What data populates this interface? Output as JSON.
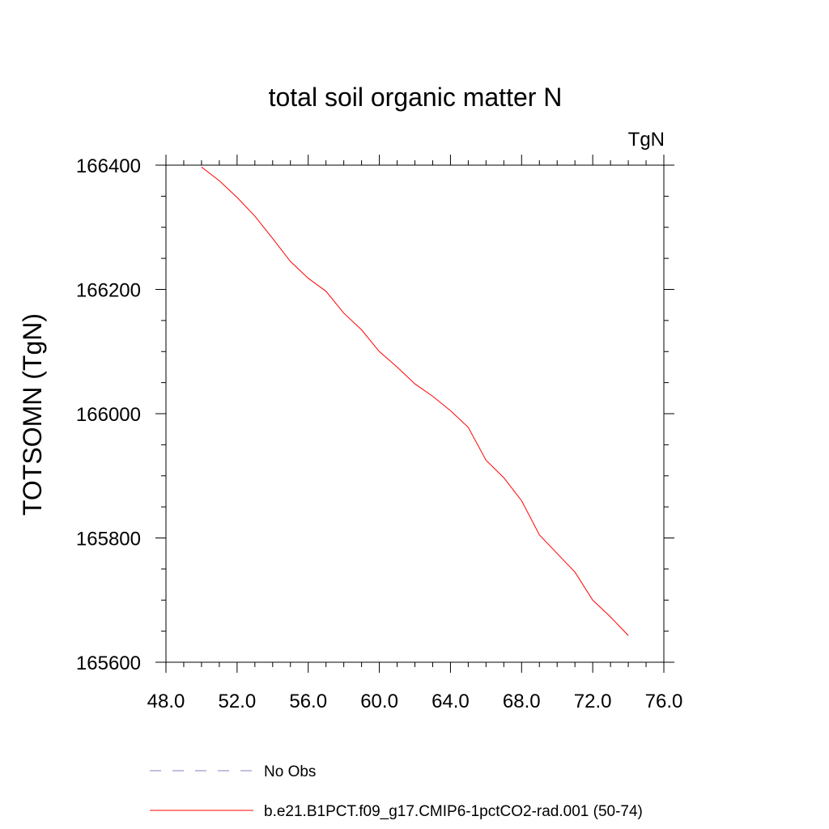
{
  "chart_data": {
    "type": "line",
    "title": "total soil organic matter N",
    "units": "TgN",
    "xlabel": "",
    "ylabel": "TOTSOMN  (TgN)",
    "xlim": [
      48,
      76
    ],
    "ylim": [
      165600,
      166400
    ],
    "x_ticks": [
      "48.0",
      "52.0",
      "56.0",
      "60.0",
      "64.0",
      "68.0",
      "72.0",
      "76.0"
    ],
    "y_ticks": [
      "165600",
      "165800",
      "166000",
      "166200",
      "166400"
    ],
    "grid": false,
    "legend_position": "bottom",
    "series": [
      {
        "name": "No Obs",
        "color": "#8080c0",
        "dashed": true,
        "x": [],
        "y": []
      },
      {
        "name": "b.e21.B1PCT.f09_g17.CMIP6-1pctCO2-rad.001 (50-74)",
        "color": "#ff0000",
        "dashed": false,
        "x": [
          50,
          51,
          52,
          53,
          54,
          55,
          56,
          57,
          58,
          59,
          60,
          61,
          62,
          63,
          64,
          65,
          66,
          67,
          68,
          69,
          70,
          71,
          72,
          73,
          74
        ],
        "y": [
          166397,
          166375,
          166348,
          166318,
          166282,
          166245,
          166218,
          166197,
          166162,
          166135,
          166100,
          166075,
          166048,
          166028,
          166005,
          165978,
          165925,
          165897,
          165860,
          165805,
          165775,
          165745,
          165700,
          165673,
          165643
        ]
      }
    ]
  }
}
